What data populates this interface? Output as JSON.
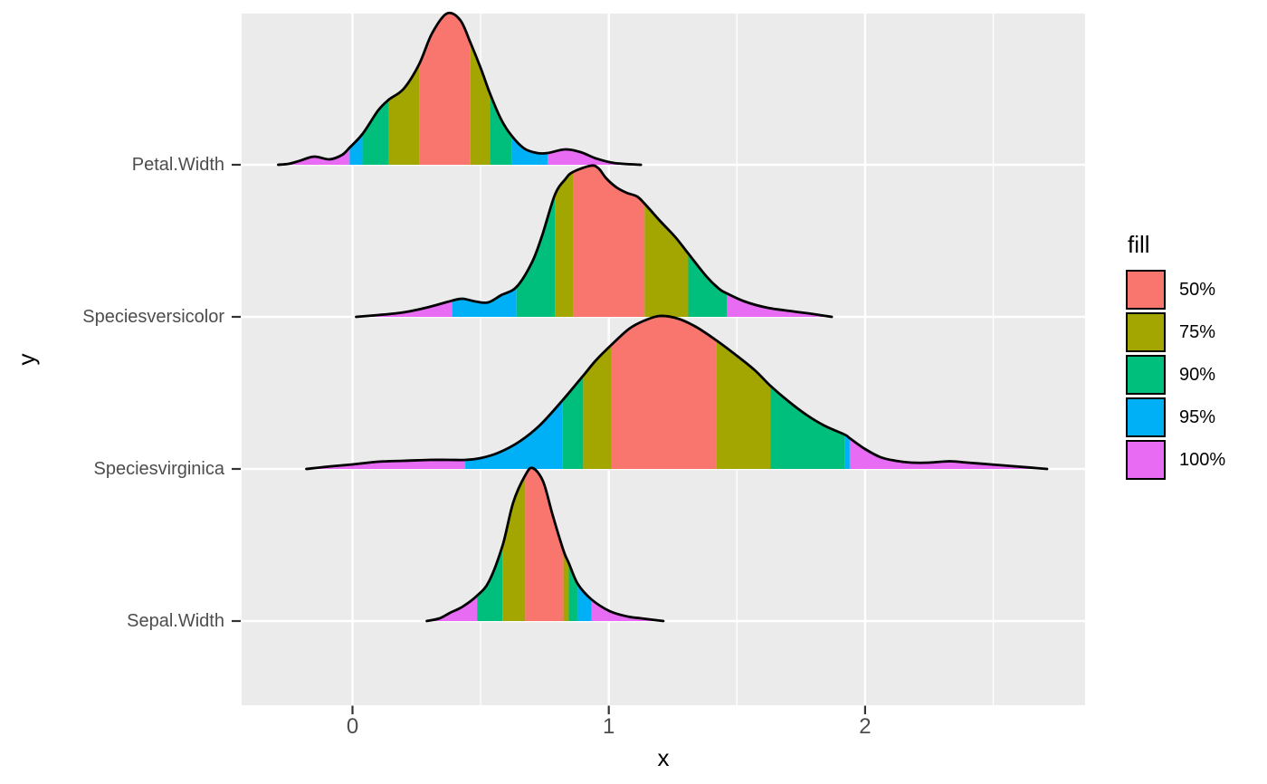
{
  "legend": {
    "title": "fill",
    "items": [
      {
        "label": "50%",
        "quantile": "50"
      },
      {
        "label": "75%",
        "quantile": "75"
      },
      {
        "label": "90%",
        "quantile": "90"
      },
      {
        "label": "95%",
        "quantile": "95"
      },
      {
        "label": "100%",
        "quantile": "100"
      }
    ]
  },
  "chart_data": {
    "type": "ridgeline-density",
    "title": "",
    "xlabel": "x",
    "ylabel": "y",
    "x_ticks": [
      {
        "value": 0,
        "label": "0"
      },
      {
        "value": 1,
        "label": "1"
      },
      {
        "value": 2,
        "label": "2"
      }
    ],
    "x_minor_ticks": [
      0.5,
      1.5,
      2.5
    ],
    "xlim": [
      -0.43,
      2.86
    ],
    "grid": true,
    "legend_position": "right",
    "panel_bg": "#EBEBEB",
    "grid_color": "#FFFFFF",
    "outline_color": "#000000",
    "axis_text_color": "#4D4D4D",
    "tick_mark_color": "#333333",
    "quantile_colors": {
      "50": "#F8766D",
      "75": "#A3A500",
      "90": "#00BF7D",
      "95": "#00B0F6",
      "100": "#E76BF3"
    },
    "categories_top_to_bottom": [
      "Petal.Width",
      "Speciesversicolor",
      "Speciesvirginica",
      "Sepal.Width"
    ],
    "series": [
      {
        "name": "Petal.Width",
        "points": [
          [
            -0.29,
            0
          ],
          [
            -0.25,
            1
          ],
          [
            -0.21,
            4
          ],
          [
            -0.15,
            9
          ],
          [
            -0.09,
            6
          ],
          [
            -0.04,
            11
          ],
          [
            -0.011,
            19
          ],
          [
            0.039,
            34
          ],
          [
            0.1,
            60
          ],
          [
            0.142,
            72
          ],
          [
            0.2,
            84
          ],
          [
            0.26,
            111
          ],
          [
            0.31,
            145
          ],
          [
            0.368,
            167
          ],
          [
            0.42,
            160
          ],
          [
            0.46,
            135
          ],
          [
            0.5,
            107
          ],
          [
            0.536,
            79
          ],
          [
            0.58,
            50
          ],
          [
            0.621,
            32
          ],
          [
            0.67,
            18
          ],
          [
            0.72,
            13
          ],
          [
            0.762,
            13
          ],
          [
            0.83,
            17
          ],
          [
            0.89,
            14
          ],
          [
            0.95,
            7
          ],
          [
            1.02,
            2
          ],
          [
            1.125,
            0
          ]
        ],
        "bands": [
          {
            "q": "100",
            "from": -0.29,
            "to": -0.011
          },
          {
            "q": "95",
            "from": -0.011,
            "to": 0.039
          },
          {
            "q": "90",
            "from": 0.039,
            "to": 0.142
          },
          {
            "q": "75",
            "from": 0.142,
            "to": 0.26
          },
          {
            "q": "50",
            "from": 0.26,
            "to": 0.46
          },
          {
            "q": "75",
            "from": 0.46,
            "to": 0.536
          },
          {
            "q": "90",
            "from": 0.536,
            "to": 0.621
          },
          {
            "q": "95",
            "from": 0.621,
            "to": 0.762
          },
          {
            "q": "100",
            "from": 0.762,
            "to": 1.125
          }
        ]
      },
      {
        "name": "Speciesversicolor",
        "points": [
          [
            0.014,
            0
          ],
          [
            0.1,
            2
          ],
          [
            0.2,
            5
          ],
          [
            0.3,
            11
          ],
          [
            0.39,
            18
          ],
          [
            0.43,
            20
          ],
          [
            0.48,
            17
          ],
          [
            0.53,
            16
          ],
          [
            0.58,
            24
          ],
          [
            0.64,
            33
          ],
          [
            0.7,
            60
          ],
          [
            0.74,
            90
          ],
          [
            0.79,
            135
          ],
          [
            0.83,
            152
          ],
          [
            0.86,
            160
          ],
          [
            0.93,
            167
          ],
          [
            0.96,
            164
          ],
          [
            0.99,
            153
          ],
          [
            1.03,
            143
          ],
          [
            1.07,
            137
          ],
          [
            1.11,
            133
          ],
          [
            1.14,
            125
          ],
          [
            1.2,
            106
          ],
          [
            1.26,
            88
          ],
          [
            1.31,
            70
          ],
          [
            1.38,
            45
          ],
          [
            1.43,
            31
          ],
          [
            1.46,
            26
          ],
          [
            1.53,
            17
          ],
          [
            1.62,
            10
          ],
          [
            1.72,
            6
          ],
          [
            1.8,
            3
          ],
          [
            1.87,
            0
          ]
        ],
        "bands": [
          {
            "q": "100",
            "from": 0.014,
            "to": 0.39
          },
          {
            "q": "95",
            "from": 0.39,
            "to": 0.64
          },
          {
            "q": "90",
            "from": 0.64,
            "to": 0.79
          },
          {
            "q": "75",
            "from": 0.79,
            "to": 0.86
          },
          {
            "q": "50",
            "from": 0.86,
            "to": 1.14
          },
          {
            "q": "75",
            "from": 1.14,
            "to": 1.31
          },
          {
            "q": "90",
            "from": 1.31,
            "to": 1.46
          },
          {
            "q": "100",
            "from": 1.46,
            "to": 1.87
          }
        ]
      },
      {
        "name": "Speciesvirginica",
        "points": [
          [
            -0.18,
            0
          ],
          [
            -0.08,
            3
          ],
          [
            0.0,
            5
          ],
          [
            0.1,
            8
          ],
          [
            0.2,
            9
          ],
          [
            0.3,
            10
          ],
          [
            0.38,
            10
          ],
          [
            0.44,
            10
          ],
          [
            0.5,
            12
          ],
          [
            0.57,
            18
          ],
          [
            0.65,
            30
          ],
          [
            0.73,
            48
          ],
          [
            0.82,
            76
          ],
          [
            0.9,
            103
          ],
          [
            0.95,
            120
          ],
          [
            1.01,
            137
          ],
          [
            1.08,
            155
          ],
          [
            1.14,
            164
          ],
          [
            1.2,
            169
          ],
          [
            1.27,
            166
          ],
          [
            1.34,
            157
          ],
          [
            1.42,
            142
          ],
          [
            1.5,
            125
          ],
          [
            1.57,
            109
          ],
          [
            1.63,
            92
          ],
          [
            1.7,
            75
          ],
          [
            1.77,
            60
          ],
          [
            1.84,
            48
          ],
          [
            1.92,
            38
          ],
          [
            1.94,
            34
          ],
          [
            2.0,
            22
          ],
          [
            2.06,
            13
          ],
          [
            2.12,
            9
          ],
          [
            2.18,
            7
          ],
          [
            2.25,
            7
          ],
          [
            2.33,
            8.5
          ],
          [
            2.4,
            7
          ],
          [
            2.49,
            5
          ],
          [
            2.58,
            3
          ],
          [
            2.71,
            0
          ]
        ],
        "bands": [
          {
            "q": "100",
            "from": -0.18,
            "to": 0.44
          },
          {
            "q": "95",
            "from": 0.44,
            "to": 0.82
          },
          {
            "q": "90",
            "from": 0.82,
            "to": 0.9
          },
          {
            "q": "75",
            "from": 0.9,
            "to": 1.01
          },
          {
            "q": "50",
            "from": 1.01,
            "to": 1.42
          },
          {
            "q": "75",
            "from": 1.42,
            "to": 1.63
          },
          {
            "q": "90",
            "from": 1.63,
            "to": 1.92
          },
          {
            "q": "95",
            "from": 1.92,
            "to": 1.94
          },
          {
            "q": "100",
            "from": 1.94,
            "to": 2.71
          }
        ]
      },
      {
        "name": "Sepal.Width",
        "points": [
          [
            0.29,
            0
          ],
          [
            0.34,
            3
          ],
          [
            0.38,
            9
          ],
          [
            0.43,
            16
          ],
          [
            0.486,
            28
          ],
          [
            0.533,
            44
          ],
          [
            0.586,
            84
          ],
          [
            0.627,
            131
          ],
          [
            0.674,
            161
          ],
          [
            0.703,
            169
          ],
          [
            0.744,
            154
          ],
          [
            0.78,
            118
          ],
          [
            0.823,
            78
          ],
          [
            0.844,
            64
          ],
          [
            0.879,
            41
          ],
          [
            0.932,
            24
          ],
          [
            1.003,
            11
          ],
          [
            1.073,
            5
          ],
          [
            1.126,
            3
          ],
          [
            1.213,
            0
          ]
        ],
        "bands": [
          {
            "q": "100",
            "from": 0.29,
            "to": 0.486
          },
          {
            "q": "90",
            "from": 0.486,
            "to": 0.585
          },
          {
            "q": "75",
            "from": 0.585,
            "to": 0.674
          },
          {
            "q": "50",
            "from": 0.674,
            "to": 0.823
          },
          {
            "q": "75",
            "from": 0.823,
            "to": 0.844
          },
          {
            "q": "90",
            "from": 0.844,
            "to": 0.879
          },
          {
            "q": "95",
            "from": 0.879,
            "to": 0.932
          },
          {
            "q": "100",
            "from": 0.932,
            "to": 1.213
          }
        ]
      }
    ]
  }
}
